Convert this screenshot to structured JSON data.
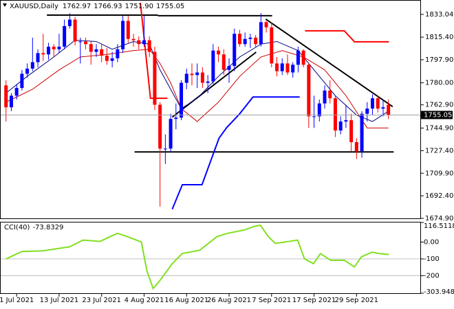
{
  "chart_data": [
    {
      "type": "candlestick",
      "title": "XAUUSD,Daily",
      "last_bar_labels": [
        "1762.97",
        "1766.93",
        "1751.90",
        "1755.05"
      ],
      "categories": [
        null,
        null,
        "1 Jul 2021",
        null,
        null,
        null,
        null,
        null,
        null,
        null,
        "13 Jul 2021",
        null,
        null,
        null,
        null,
        null,
        null,
        null,
        "23 Jul 2021",
        null,
        null,
        null,
        null,
        null,
        null,
        null,
        "4 Aug 2021",
        null,
        null,
        null,
        null,
        null,
        null,
        null,
        "16 Aug 2021",
        null,
        null,
        null,
        null,
        null,
        null,
        null,
        "26 Aug 2021",
        null,
        null,
        null,
        null,
        null,
        null,
        null,
        "7 Sep 2021",
        null,
        null,
        null,
        null,
        null,
        null,
        null,
        "17 Sep 2021",
        null,
        null,
        null,
        null,
        null,
        null,
        null,
        "29 Sep 2021",
        null,
        null,
        null,
        null,
        null,
        null
      ],
      "open": [
        1778,
        1761,
        1770,
        1776,
        1787,
        1791,
        1796,
        1803,
        1802,
        1808,
        1806,
        1808,
        1824,
        1829,
        1812,
        1812,
        1810,
        1804,
        1806,
        1801,
        1797,
        1799,
        1806,
        1828,
        1814,
        1813,
        1810,
        1813,
        1804,
        1763,
        1729,
        1729,
        1752,
        1753,
        1780,
        1787,
        1786,
        1788,
        1780,
        1781,
        1805,
        1802,
        1790,
        1793,
        1818,
        1810,
        1814,
        1815,
        1810,
        1827,
        1823,
        1795,
        1789,
        1795,
        1788,
        1794,
        1805,
        1794,
        1754,
        1754,
        1764,
        1774,
        1768,
        1743,
        1750,
        1751,
        1734,
        1727,
        1756,
        1760,
        1768,
        1760,
        1762.97
      ],
      "high": [
        1782,
        1772,
        1779,
        1790,
        1795,
        1815,
        1806,
        1818,
        1811,
        1810,
        1818,
        1829,
        1834,
        1831,
        1815,
        1815,
        1812,
        1810,
        1810,
        1807,
        1804,
        1810,
        1832,
        1832,
        1818,
        1816,
        1832,
        1816,
        1808,
        1765,
        1740,
        1756,
        1764,
        1782,
        1791,
        1795,
        1795,
        1792,
        1786,
        1810,
        1808,
        1806,
        1799,
        1822,
        1821,
        1819,
        1818,
        1817,
        1834,
        1828,
        1827,
        1800,
        1799,
        1802,
        1796,
        1808,
        1806,
        1795,
        1770,
        1767,
        1778,
        1782,
        1770,
        1754,
        1763,
        1756,
        1737,
        1758,
        1765,
        1771,
        1770,
        1767,
        1766.93
      ],
      "low": [
        1750,
        1758,
        1767,
        1774,
        1784,
        1789,
        1792,
        1797,
        1798,
        1800,
        1803,
        1806,
        1822,
        1809,
        1795,
        1806,
        1794,
        1800,
        1796,
        1794,
        1792,
        1796,
        1803,
        1811,
        1808,
        1806,
        1808,
        1800,
        1759,
        1684,
        1717,
        1726,
        1744,
        1751,
        1775,
        1778,
        1776,
        1776,
        1772,
        1779,
        1796,
        1786,
        1780,
        1789,
        1808,
        1808,
        1807,
        1808,
        1808,
        1819,
        1792,
        1785,
        1786,
        1786,
        1784,
        1788,
        1792,
        1745,
        1745,
        1750,
        1760,
        1764,
        1738,
        1740,
        1745,
        1727,
        1721,
        1722,
        1750,
        1755,
        1757,
        1754,
        1751.9
      ],
      "close": [
        1761,
        1770,
        1776,
        1787,
        1791,
        1796,
        1803,
        1802,
        1808,
        1806,
        1808,
        1824,
        1829,
        1812,
        1812,
        1810,
        1804,
        1806,
        1801,
        1797,
        1799,
        1806,
        1828,
        1814,
        1813,
        1810,
        1813,
        1804,
        1763,
        1729,
        1729,
        1752,
        1753,
        1780,
        1787,
        1786,
        1788,
        1780,
        1781,
        1805,
        1802,
        1790,
        1793,
        1818,
        1810,
        1814,
        1815,
        1810,
        1827,
        1823,
        1795,
        1789,
        1795,
        1788,
        1794,
        1805,
        1794,
        1754,
        1754,
        1764,
        1774,
        1768,
        1743,
        1750,
        1751,
        1734,
        1727,
        1756,
        1760,
        1768,
        1760,
        1761,
        1755.05
      ],
      "up_color": "#0000ff",
      "down_color": "#ff0000",
      "last_price_color": "#a0a0a0",
      "xlim": [
        -1,
        78
      ],
      "ylim": [
        1674.9,
        1843.66
      ],
      "yticks": [
        1833.04,
        {
          "value": 1815.4,
          "label": "1815.40"
        },
        {
          "value": 1797.9,
          "label": "1797.90"
        },
        {
          "value": 1780,
          "label": "1780.00"
        },
        {
          "value": 1762.9,
          "label": "1762.90"
        },
        {
          "value": 1744.9,
          "label": "1744.90"
        },
        {
          "value": 1727.4,
          "label": "1727.40"
        },
        {
          "value": 1709.9,
          "label": "1709.90"
        },
        {
          "value": 1692.4,
          "label": "1692.40"
        },
        {
          "value": 1674.9,
          "label": "1674.90"
        }
      ],
      "overlays": [
        {
          "color": "#000080",
          "width": 1,
          "x": [
            0,
            4,
            9,
            13,
            17,
            20,
            24,
            27,
            29,
            31,
            33,
            36,
            40,
            44,
            48,
            51,
            55,
            58,
            62,
            66,
            69,
            72
          ],
          "values": [
            1772,
            1785,
            1800,
            1813,
            1812,
            1806,
            1812,
            1810,
            1790,
            1775,
            1760,
            1768,
            1785,
            1800,
            1810,
            1812,
            1805,
            1790,
            1770,
            1755,
            1750,
            1758
          ]
        },
        {
          "color": "#cc0000",
          "width": 1,
          "x": [
            0,
            5,
            10,
            14,
            19,
            24,
            27,
            29,
            31,
            33,
            36,
            40,
            44,
            48,
            52,
            56,
            60,
            64,
            68,
            72
          ],
          "values": [
            1765,
            1775,
            1790,
            1800,
            1802,
            1805,
            1806,
            1795,
            1780,
            1760,
            1750,
            1765,
            1785,
            1800,
            1805,
            1800,
            1790,
            1770,
            1745,
            1745
          ]
        },
        {
          "color": "#0000ff",
          "width": 2,
          "x": [
            31.3,
            33.2,
            36.9,
            40.1,
            41.5,
            44,
            46.5,
            55.3
          ],
          "values": [
            1682,
            1701,
            1701,
            1737,
            1745,
            1756,
            1769,
            1769
          ]
        },
        {
          "color": "#ff0000",
          "width": 2,
          "x": [
            25.3,
            27.2,
            30.4
          ],
          "values": [
            1842,
            1768,
            1768
          ]
        },
        {
          "color": "#ff0000",
          "width": 2,
          "x": [
            56.3,
            63.7,
            65.6,
            72.1
          ],
          "values": [
            1820.3,
            1820.3,
            1811.8,
            1811.8
          ]
        }
      ],
      "trendlines": [
        {
          "x": [
            7.7,
            28.6
          ],
          "values": [
            1832.5,
            1832.5
          ]
        },
        {
          "x": [
            28.6,
            50.1
          ],
          "values": [
            1832,
            1832
          ]
        },
        {
          "x": [
            31.3,
            47.1
          ],
          "values": [
            1753.4,
            1803.8
          ]
        },
        {
          "x": [
            48.9,
            72.8
          ],
          "values": [
            1829.4,
            1761.5
          ]
        },
        {
          "x": [
            24.2,
            73
          ],
          "values": [
            1726.4,
            1726.4
          ]
        }
      ],
      "trendline_color": "#000000"
    },
    {
      "type": "line",
      "title": "CCI(40)",
      "color": "#80e020",
      "x": [
        0,
        3,
        7,
        12,
        14.5,
        17.7,
        19.6,
        21,
        22.9,
        25.5,
        26.5,
        27.7,
        29,
        31.3,
        33.2,
        36.5,
        39.7,
        41.7,
        44.9,
        46.6,
        47.9,
        49.4,
        50.7,
        53.3,
        54.9,
        56.2,
        57.9,
        59.2,
        61.1,
        63.7,
        65.6,
        66.9,
        68.9,
        70.2,
        72.1
      ],
      "values": [
        -100,
        -56,
        -52,
        -28,
        12,
        4,
        32,
        52,
        32,
        0,
        -168,
        -276,
        -228,
        -128,
        -68,
        -48,
        32,
        52,
        72,
        92,
        100,
        32,
        -8,
        4,
        12,
        -100,
        -128,
        -68,
        -108,
        -108,
        -148,
        -88,
        -60,
        -68,
        -73.8329
      ],
      "xlim": [
        -1,
        78
      ],
      "ylim": [
        -303.9481,
        116.5118
      ],
      "yticks": [
        116.5118,
        {
          "value": 0,
          "label": "0.00"
        },
        -100,
        -200,
        -303.9481
      ],
      "levels": [
        -100,
        -200
      ]
    }
  ]
}
